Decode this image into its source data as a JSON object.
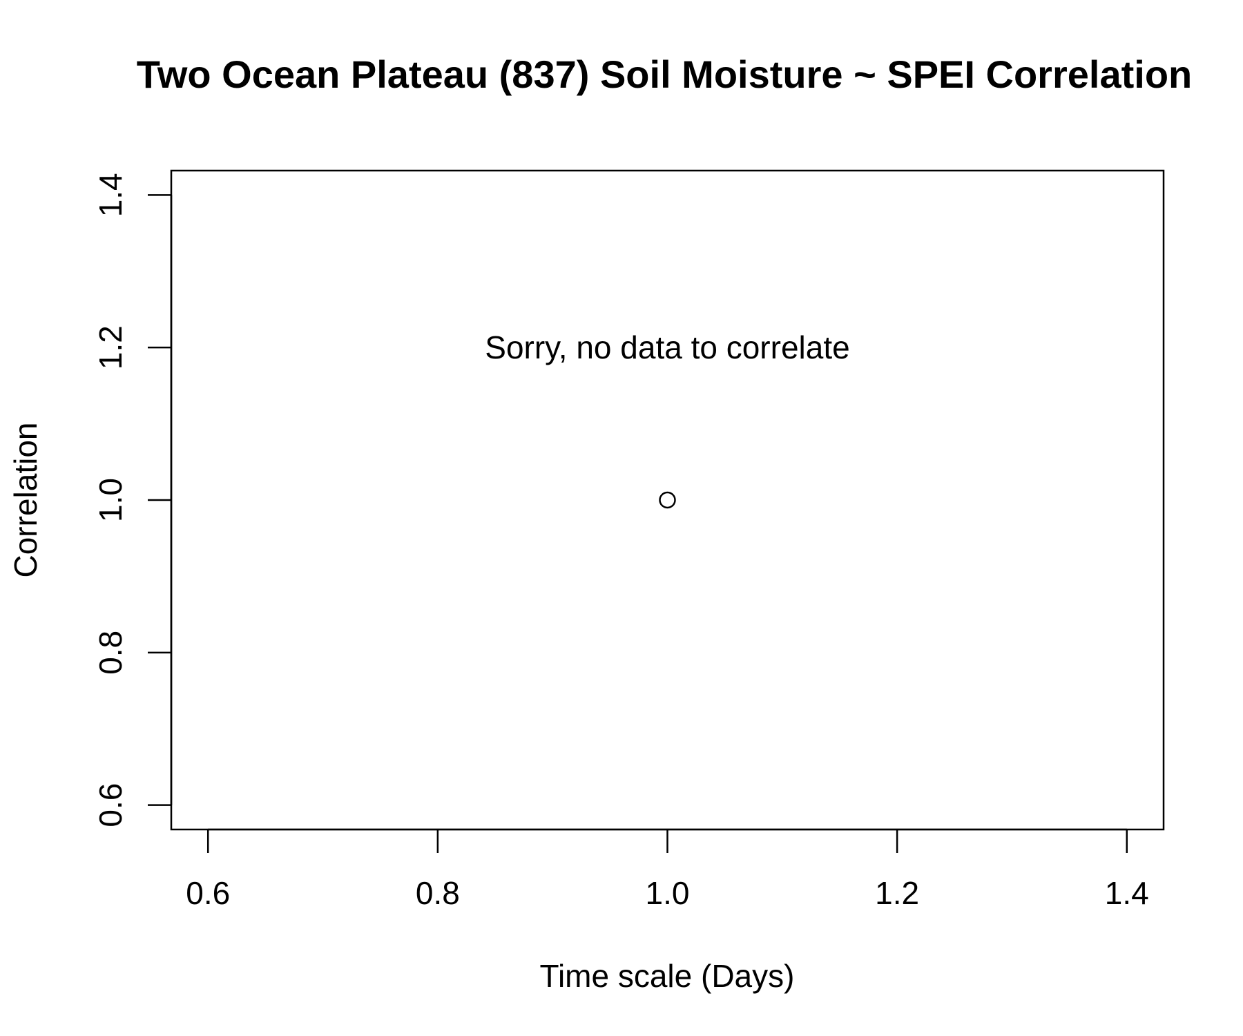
{
  "chart_data": {
    "type": "scatter",
    "title": "Two Ocean Plateau (837) Soil Moisture ~ SPEI Correlation",
    "xlabel": "Time scale (Days)",
    "ylabel": "Correlation",
    "xlim": [
      0.568,
      1.432
    ],
    "ylim": [
      0.568,
      1.432
    ],
    "x_ticks": [
      0.6,
      0.8,
      1.0,
      1.2,
      1.4
    ],
    "x_tick_labels": [
      "0.6",
      "0.8",
      "1.0",
      "1.2",
      "1.4"
    ],
    "y_ticks": [
      0.6,
      0.8,
      1.0,
      1.2,
      1.4
    ],
    "y_tick_labels": [
      "0.6",
      "0.8",
      "1.0",
      "1.2",
      "1.4"
    ],
    "grid": false,
    "points": [
      {
        "x": 1.0,
        "y": 1.0
      }
    ],
    "marker": "open-circle",
    "annotations": [
      {
        "text": "Sorry, no data to correlate",
        "x": 1.0,
        "y": 1.2
      }
    ],
    "colors": {
      "foreground": "#000000",
      "background": "#ffffff"
    }
  }
}
